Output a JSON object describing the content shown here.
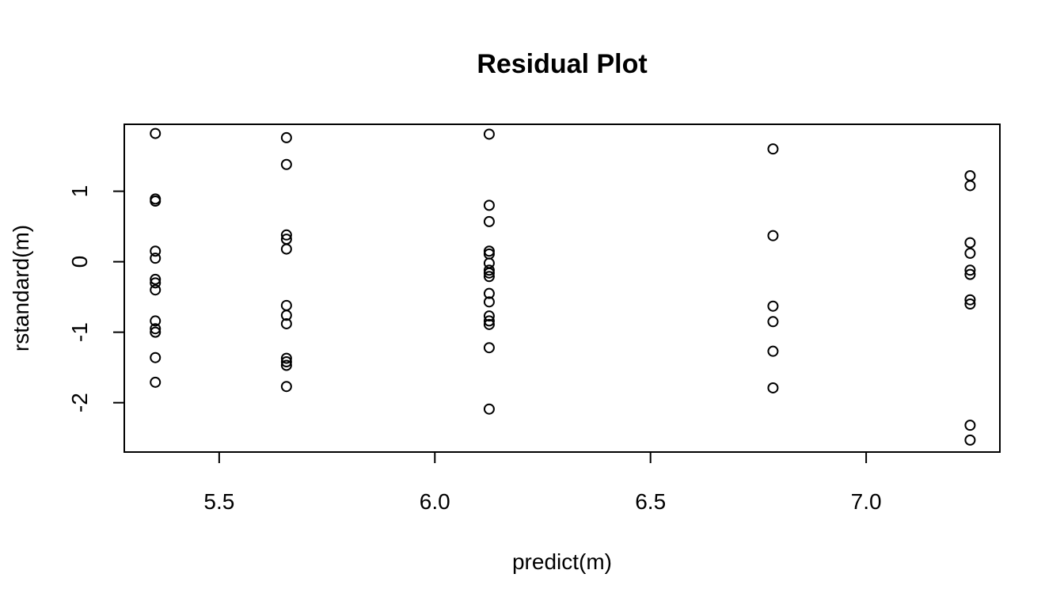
{
  "chart_data": {
    "type": "scatter",
    "title": "Residual Plot",
    "xlabel": "predict(m)",
    "ylabel": "rstandard(m)",
    "xlim": [
      5.28,
      7.31
    ],
    "ylim": [
      -2.7,
      1.95
    ],
    "x_ticks": [
      {
        "value": 5.5,
        "label": "5.5"
      },
      {
        "value": 6.0,
        "label": "6.0"
      },
      {
        "value": 6.5,
        "label": "6.5"
      },
      {
        "value": 7.0,
        "label": "7.0"
      }
    ],
    "y_ticks": [
      {
        "value": -2,
        "label": "-2"
      },
      {
        "value": -1,
        "label": "-1"
      },
      {
        "value": 0,
        "label": "0"
      },
      {
        "value": 1,
        "label": "1"
      }
    ],
    "grid": false,
    "marker": "open-circle",
    "color": "#000000",
    "points": [
      {
        "x": 5.352,
        "y": 1.82
      },
      {
        "x": 5.352,
        "y": 0.89
      },
      {
        "x": 5.352,
        "y": 0.86
      },
      {
        "x": 5.352,
        "y": 0.15
      },
      {
        "x": 5.352,
        "y": 0.05
      },
      {
        "x": 5.352,
        "y": -0.25
      },
      {
        "x": 5.352,
        "y": -0.3
      },
      {
        "x": 5.352,
        "y": -0.4
      },
      {
        "x": 5.352,
        "y": -0.84
      },
      {
        "x": 5.352,
        "y": -0.95
      },
      {
        "x": 5.352,
        "y": -1.0
      },
      {
        "x": 5.352,
        "y": -1.36
      },
      {
        "x": 5.352,
        "y": -1.71
      },
      {
        "x": 5.656,
        "y": 1.76
      },
      {
        "x": 5.656,
        "y": 1.38
      },
      {
        "x": 5.656,
        "y": 0.38
      },
      {
        "x": 5.656,
        "y": 0.32
      },
      {
        "x": 5.656,
        "y": 0.18
      },
      {
        "x": 5.656,
        "y": -0.62
      },
      {
        "x": 5.656,
        "y": -0.76
      },
      {
        "x": 5.656,
        "y": -0.88
      },
      {
        "x": 5.656,
        "y": -1.37
      },
      {
        "x": 5.656,
        "y": -1.42
      },
      {
        "x": 5.656,
        "y": -1.47
      },
      {
        "x": 5.656,
        "y": -1.77
      },
      {
        "x": 6.126,
        "y": 1.81
      },
      {
        "x": 6.126,
        "y": 0.8
      },
      {
        "x": 6.126,
        "y": 0.57
      },
      {
        "x": 6.126,
        "y": 0.15
      },
      {
        "x": 6.126,
        "y": 0.11
      },
      {
        "x": 6.126,
        "y": -0.02
      },
      {
        "x": 6.126,
        "y": -0.12
      },
      {
        "x": 6.126,
        "y": -0.16
      },
      {
        "x": 6.126,
        "y": -0.21
      },
      {
        "x": 6.126,
        "y": -0.45
      },
      {
        "x": 6.126,
        "y": -0.57
      },
      {
        "x": 6.126,
        "y": -0.77
      },
      {
        "x": 6.126,
        "y": -0.84
      },
      {
        "x": 6.126,
        "y": -0.89
      },
      {
        "x": 6.126,
        "y": -1.22
      },
      {
        "x": 6.126,
        "y": -2.09
      },
      {
        "x": 6.784,
        "y": 1.6
      },
      {
        "x": 6.784,
        "y": 0.37
      },
      {
        "x": 6.784,
        "y": -0.63
      },
      {
        "x": 6.784,
        "y": -0.85
      },
      {
        "x": 6.784,
        "y": -1.27
      },
      {
        "x": 6.784,
        "y": -1.79
      },
      {
        "x": 7.241,
        "y": 1.22
      },
      {
        "x": 7.241,
        "y": 1.08
      },
      {
        "x": 7.241,
        "y": 0.27
      },
      {
        "x": 7.241,
        "y": 0.12
      },
      {
        "x": 7.241,
        "y": -0.12
      },
      {
        "x": 7.241,
        "y": -0.18
      },
      {
        "x": 7.241,
        "y": -0.54
      },
      {
        "x": 7.241,
        "y": -0.6
      },
      {
        "x": 7.241,
        "y": -2.32
      },
      {
        "x": 7.241,
        "y": -2.53
      }
    ]
  }
}
